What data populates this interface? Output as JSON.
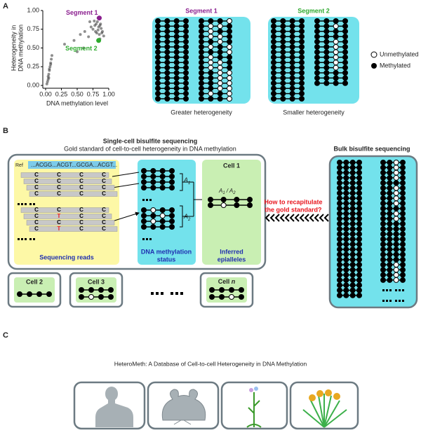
{
  "panel_a": {
    "label": "A",
    "segment_1_title": "Segment 1",
    "segment_2_title": "Segment 2",
    "caption_1": "Greater heterogeneity",
    "caption_2": "Smaller heterogeneity",
    "legend": [
      "Unmethylated",
      "Methylated"
    ]
  },
  "chart_data": {
    "type": "scatter",
    "xlabel": "DNA methylation level",
    "ylabel": [
      "Heterogeneity in",
      "DNA methylation"
    ],
    "xlim": [
      0,
      1
    ],
    "ylim": [
      0,
      1
    ],
    "xticks": [
      {
        "value": 0,
        "label": "0.00"
      },
      {
        "value": 0.25,
        "label": "0.25"
      },
      {
        "value": 0.5,
        "label": "0.50"
      },
      {
        "value": 0.75,
        "label": "0.75"
      },
      {
        "value": 1,
        "label": "1.00"
      }
    ],
    "yticks": [
      {
        "value": 0,
        "label": "0.00"
      },
      {
        "value": 0.25,
        "label": "0.25"
      },
      {
        "value": 0.5,
        "label": "0.50"
      },
      {
        "value": 0.75,
        "label": "0.75"
      },
      {
        "value": 1,
        "label": "1.00"
      }
    ],
    "series": [
      {
        "color": "#333333",
        "x": [
          0.02,
          0.03,
          0.04,
          0.05,
          0.05,
          0.06,
          0.07,
          0.08,
          0.09,
          0.1,
          0.04,
          0.06,
          0.08,
          0.3,
          0.45,
          0.55,
          0.62,
          0.68,
          0.72,
          0.75,
          0.78,
          0.8,
          0.82,
          0.84,
          0.86,
          0.88,
          0.9,
          0.81,
          0.83,
          0.85,
          0.87,
          0.89,
          0.79,
          0.77,
          0.92,
          0.7,
          0.6,
          0.5,
          0.83,
          0.86
        ],
        "y": [
          0.02,
          0.05,
          0.08,
          0.1,
          0.15,
          0.2,
          0.25,
          0.3,
          0.35,
          0.4,
          0.12,
          0.22,
          0.28,
          0.55,
          0.6,
          0.68,
          0.72,
          0.65,
          0.78,
          0.75,
          0.8,
          0.82,
          0.85,
          0.78,
          0.8,
          0.76,
          0.72,
          0.7,
          0.74,
          0.68,
          0.82,
          0.7,
          0.72,
          0.86,
          0.66,
          0.85,
          0.5,
          0.45,
          0.9,
          0.62
        ]
      },
      {
        "name": "Segment 1",
        "color": "#8b1f8f",
        "x": [
          0.85
        ],
        "y": [
          0.9
        ]
      },
      {
        "name": "Segment 2",
        "color": "#2eaa2e",
        "x": [
          0.84
        ],
        "y": [
          0.6
        ]
      }
    ]
  },
  "panel_b": {
    "label": "B",
    "title": "Single-cell bisulfite sequencing",
    "subtitle": "Gold standard of cell-to-cell heterogeneity in DNA methylation",
    "ref_label": "Ref",
    "ref_seq": "...ACGG...ACGT...GCGA...ACGT...",
    "reads": [
      [
        "C",
        "C",
        "C",
        "C"
      ],
      [
        "C",
        "C",
        "C",
        "C"
      ],
      [
        "C",
        "C",
        "C",
        "C"
      ],
      [
        "C",
        "C",
        "C",
        "C"
      ],
      [
        "C",
        "C",
        "C",
        "C"
      ],
      [
        "C",
        "T",
        "C",
        "C"
      ],
      [
        "C",
        "C",
        "C",
        "C"
      ],
      [
        "C",
        "T",
        "C",
        "C"
      ]
    ],
    "reads_caption": "Sequencing reads",
    "status_caption": [
      "DNA methylation",
      "status"
    ],
    "epiallele_caption": [
      "Inferred",
      "epialleles"
    ],
    "a1": [
      "A",
      "1"
    ],
    "a2": [
      "A",
      "2"
    ],
    "ratio": [
      "A",
      "1",
      "/",
      "A",
      "2"
    ],
    "cell_1": "Cell 1",
    "cell_2": "Cell 2",
    "cell_3": "Cell 3",
    "cell_n": [
      "Cell",
      "n"
    ],
    "question": [
      "How to recapitulate",
      "the gold standard?"
    ],
    "bulk_title": "Bulk bisulfite sequencing"
  },
  "panel_c": {
    "label": "C",
    "title": "HeteroMeth: A Database of Cell-to-cell Heterogeneity in DNA Methylation"
  }
}
